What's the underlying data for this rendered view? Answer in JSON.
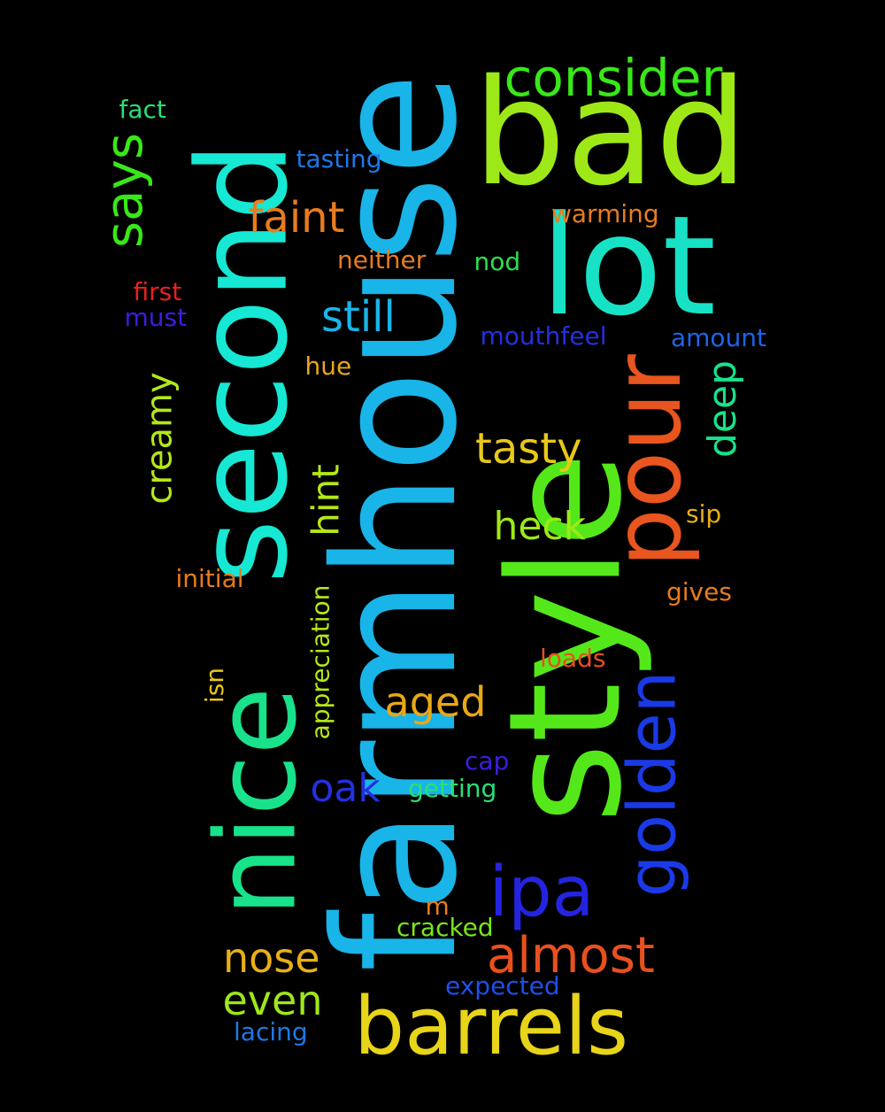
{
  "background": "#000000",
  "words": [
    {
      "id": "farmhouse",
      "text": "farmhouse",
      "color": "#19b4e8"
    },
    {
      "id": "style",
      "text": "style",
      "color": "#54e81a"
    },
    {
      "id": "second",
      "text": "second",
      "color": "#16e8d4"
    },
    {
      "id": "bad",
      "text": "bad",
      "color": "#9ee818"
    },
    {
      "id": "lot",
      "text": "lot",
      "color": "#18e2c6"
    },
    {
      "id": "nice",
      "text": "nice",
      "color": "#18e28a"
    },
    {
      "id": "pour",
      "text": "pour",
      "color": "#e8551e"
    },
    {
      "id": "barrels",
      "text": "barrels",
      "color": "#e8d418"
    },
    {
      "id": "golden",
      "text": "golden",
      "color": "#1a3ae8"
    },
    {
      "id": "ipa",
      "text": "ipa",
      "color": "#2424e0"
    },
    {
      "id": "consider",
      "text": "consider",
      "color": "#38e818"
    },
    {
      "id": "says",
      "text": "says",
      "color": "#38e818"
    },
    {
      "id": "faint",
      "text": "faint",
      "color": "#e87c1e"
    },
    {
      "id": "still",
      "text": "still",
      "color": "#19b4e8"
    },
    {
      "id": "tasty",
      "text": "tasty",
      "color": "#e8c818"
    },
    {
      "id": "almost",
      "text": "almost",
      "color": "#e8501e"
    },
    {
      "id": "creamy",
      "text": "creamy",
      "color": "#b4e818"
    },
    {
      "id": "deep",
      "text": "deep",
      "color": "#18e28a"
    },
    {
      "id": "heck",
      "text": "heck",
      "color": "#9ee818"
    },
    {
      "id": "hint",
      "text": "hint",
      "color": "#b4e818"
    },
    {
      "id": "aged",
      "text": "aged",
      "color": "#e8a818"
    },
    {
      "id": "nose",
      "text": "nose",
      "color": "#e8b018"
    },
    {
      "id": "even",
      "text": "even",
      "color": "#9ee818"
    },
    {
      "id": "oak",
      "text": "oak",
      "color": "#2430e0"
    },
    {
      "id": "tasting",
      "text": "tasting",
      "color": "#1e78e8"
    },
    {
      "id": "warming",
      "text": "warming",
      "color": "#e87c1e"
    },
    {
      "id": "neither",
      "text": "neither",
      "color": "#e87c1e"
    },
    {
      "id": "nod",
      "text": "nod",
      "color": "#28e050"
    },
    {
      "id": "first",
      "text": "first",
      "color": "#e82020"
    },
    {
      "id": "must",
      "text": "must",
      "color": "#3a1ee0"
    },
    {
      "id": "mouthfeel",
      "text": "mouthfeel",
      "color": "#2430e0"
    },
    {
      "id": "amount",
      "text": "amount",
      "color": "#1e64e8"
    },
    {
      "id": "hue",
      "text": "hue",
      "color": "#e8a818"
    },
    {
      "id": "fact",
      "text": "fact",
      "color": "#28e078"
    },
    {
      "id": "initial",
      "text": "initial",
      "color": "#e87c1e"
    },
    {
      "id": "appreciation",
      "text": "appreciation",
      "color": "#b4e818"
    },
    {
      "id": "isn",
      "text": "isn",
      "color": "#e8c818"
    },
    {
      "id": "sip",
      "text": "sip",
      "color": "#e8b018"
    },
    {
      "id": "gives",
      "text": "gives",
      "color": "#e87c1e"
    },
    {
      "id": "loads",
      "text": "loads",
      "color": "#e8501e"
    },
    {
      "id": "cap",
      "text": "cap",
      "color": "#3a1ee0"
    },
    {
      "id": "getting",
      "text": "getting",
      "color": "#28e078"
    },
    {
      "id": "m",
      "text": "m",
      "color": "#e87c1e"
    },
    {
      "id": "cracked",
      "text": "cracked",
      "color": "#78e818"
    },
    {
      "id": "expected",
      "text": "expected",
      "color": "#1e50e8"
    },
    {
      "id": "lacing",
      "text": "lacing",
      "color": "#1e78e8"
    }
  ]
}
